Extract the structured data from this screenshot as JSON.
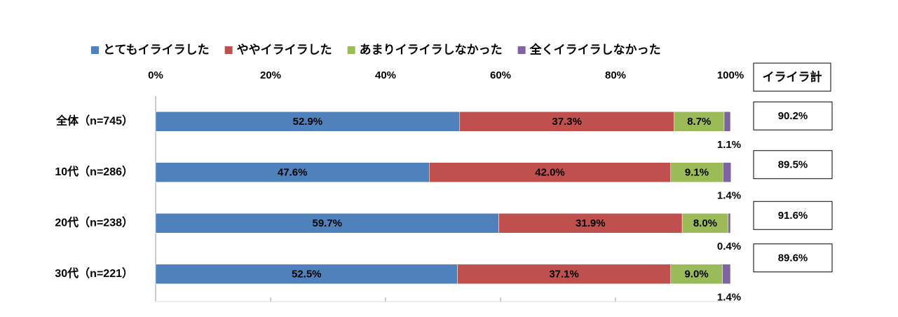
{
  "chart_data": {
    "type": "stacked-bar-horizontal",
    "categories": [
      "全体（n=745）",
      "10代（n=286）",
      "20代（n=238）",
      "30代（n=221）"
    ],
    "series": [
      {
        "name": "とてもイライラした",
        "color": "#4f81bd",
        "values": [
          52.9,
          47.6,
          59.7,
          52.5
        ],
        "value_labels": [
          "52.9%",
          "47.6%",
          "59.7%",
          "52.5%"
        ]
      },
      {
        "name": "ややイライラした",
        "color": "#c0504d",
        "values": [
          37.3,
          42.0,
          31.9,
          37.1
        ],
        "value_labels": [
          "37.3%",
          "42.0%",
          "31.9%",
          "37.1%"
        ]
      },
      {
        "name": "あまりイライラしなかった",
        "color": "#9bbb59",
        "values": [
          8.7,
          9.1,
          8.0,
          9.0
        ],
        "value_labels": [
          "8.7%",
          "9.1%",
          "8.0%",
          "9.0%"
        ]
      },
      {
        "name": "全くイライラしなかった",
        "color": "#8064a2",
        "values": [
          1.1,
          1.4,
          0.4,
          1.4
        ],
        "value_labels": [
          "1.1%",
          "1.4%",
          "0.4%",
          "1.4%"
        ]
      }
    ],
    "xlim": [
      0,
      100
    ],
    "xticks": [
      {
        "value": 0,
        "label": "0%"
      },
      {
        "value": 20,
        "label": "20%"
      },
      {
        "value": 40,
        "label": "40%"
      },
      {
        "value": 60,
        "label": "60%"
      },
      {
        "value": 80,
        "label": "80%"
      },
      {
        "value": 100,
        "label": "100%"
      }
    ],
    "legend": "top",
    "totals": {
      "label": "イライラ計",
      "values": [
        90.2,
        89.5,
        91.6,
        89.6
      ],
      "value_labels": [
        "90.2%",
        "89.5%",
        "91.6%",
        "89.6%"
      ]
    }
  }
}
